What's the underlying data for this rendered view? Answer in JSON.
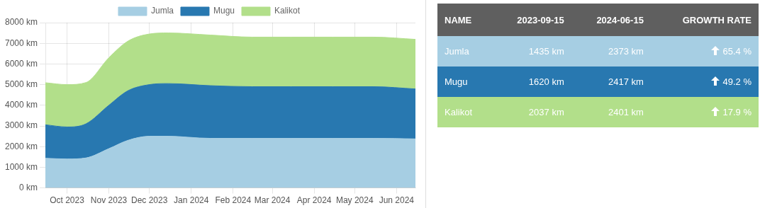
{
  "chart_data": [
    {
      "type": "area",
      "stacked": true,
      "x": [
        "2023-09-15",
        "2023-10-01",
        "2023-10-15",
        "2023-11-01",
        "2023-11-15",
        "2023-12-01",
        "2023-12-15",
        "2024-01-15",
        "2024-02-15",
        "2024-03-15",
        "2024-04-15",
        "2024-05-15",
        "2024-06-15"
      ],
      "series": [
        {
          "name": "Jumla",
          "color": "#a6cee3",
          "values": [
            1435,
            1400,
            1450,
            1900,
            2300,
            2500,
            2500,
            2400,
            2400,
            2400,
            2400,
            2400,
            2373
          ]
        },
        {
          "name": "Mugu",
          "color": "#2878b0",
          "values": [
            1620,
            1550,
            1650,
            2100,
            2400,
            2500,
            2550,
            2550,
            2500,
            2500,
            2500,
            2500,
            2417
          ]
        },
        {
          "name": "Kalikot",
          "color": "#b2df8a",
          "values": [
            2037,
            2050,
            2000,
            2300,
            2400,
            2450,
            2450,
            2450,
            2400,
            2400,
            2400,
            2400,
            2401
          ]
        }
      ],
      "xlim": [
        "2023-09-15",
        "2024-06-15"
      ],
      "xticks": [
        {
          "value": "2023-10-01",
          "label": "Oct 2023"
        },
        {
          "value": "2023-11-01",
          "label": "Nov 2023"
        },
        {
          "value": "2023-12-01",
          "label": "Dec 2023"
        },
        {
          "value": "2024-01-01",
          "label": "Jan 2024"
        },
        {
          "value": "2024-02-01",
          "label": "Feb 2024"
        },
        {
          "value": "2024-03-01",
          "label": "Mar 2024"
        },
        {
          "value": "2024-04-01",
          "label": "Apr 2024"
        },
        {
          "value": "2024-05-01",
          "label": "May 2024"
        },
        {
          "value": "2024-06-01",
          "label": "Jun 2024"
        }
      ],
      "ylim": [
        0,
        8000
      ],
      "yticks": [
        {
          "value": 0,
          "label": "0 km"
        },
        {
          "value": 1000,
          "label": "1000 km"
        },
        {
          "value": 2000,
          "label": "2000 km"
        },
        {
          "value": 3000,
          "label": "3000 km"
        },
        {
          "value": 4000,
          "label": "4000 km"
        },
        {
          "value": 5000,
          "label": "5000 km"
        },
        {
          "value": 6000,
          "label": "6000 km"
        },
        {
          "value": 7000,
          "label": "7000 km"
        },
        {
          "value": 8000,
          "label": "8000 km"
        }
      ],
      "grid": true,
      "legend": "top",
      "marker": "none"
    },
    {
      "type": "other",
      "ylabel": "NAME",
      "categories": [
        "2023-09-15",
        "2024-06-15",
        "GROWTH RATE"
      ],
      "series": [
        {
          "name": "Jumla",
          "color": "#a6cee3",
          "values": [
            1435,
            2373,
            65.4
          ],
          "value_labels": [
            "1435 km",
            "2373 km",
            "65.4 %"
          ]
        },
        {
          "name": "Mugu",
          "color": "#2878b0",
          "values": [
            1620,
            2417,
            49.2
          ],
          "value_labels": [
            "1620 km",
            "2417 km",
            "49.2 %"
          ]
        },
        {
          "name": "Kalikot",
          "color": "#b2df8a",
          "values": [
            2037,
            2401,
            17.9
          ],
          "value_labels": [
            "2037 km",
            "2401 km",
            "17.9 %"
          ]
        }
      ]
    }
  ]
}
